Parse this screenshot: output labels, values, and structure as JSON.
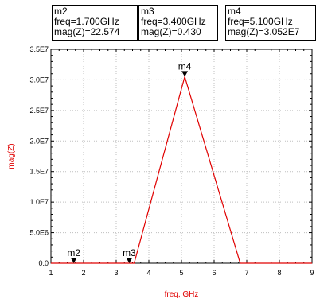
{
  "chart_data": {
    "type": "line",
    "xlabel": "freq, GHz",
    "ylabel": "mag(Z)",
    "xlim": [
      1,
      9
    ],
    "ylim": [
      0,
      35000000
    ],
    "x_ticks": [
      "1",
      "2",
      "3",
      "4",
      "5",
      "6",
      "7",
      "8",
      "9"
    ],
    "y_ticks": [
      "0.0",
      "5.0E6",
      "1.0E7",
      "1.5E7",
      "2.0E7",
      "2.5E7",
      "3.0E7",
      "3.5E7"
    ],
    "series": [
      {
        "color": "#e00000",
        "x": [
          1.0,
          1.7,
          3.4,
          3.55,
          5.1,
          6.8,
          9.0
        ],
        "y": [
          0,
          22.574,
          0.43,
          0,
          30520000,
          0,
          0
        ]
      }
    ],
    "markers": [
      {
        "label": "m2",
        "x": 1.7,
        "y": 22.574
      },
      {
        "label": "m3",
        "x": 3.4,
        "y": 0.43
      },
      {
        "label": "m4",
        "x": 5.1,
        "y": 30520000
      }
    ],
    "readouts": [
      {
        "name": "m2",
        "freq": "freq=1.700GHz",
        "mag": "mag(Z)=22.574"
      },
      {
        "name": "m3",
        "freq": "freq=3.400GHz",
        "mag": "mag(Z)=0.430"
      },
      {
        "name": "m4",
        "freq": "freq=5.100GHz",
        "mag": "mag(Z)=3.052E7"
      }
    ]
  }
}
